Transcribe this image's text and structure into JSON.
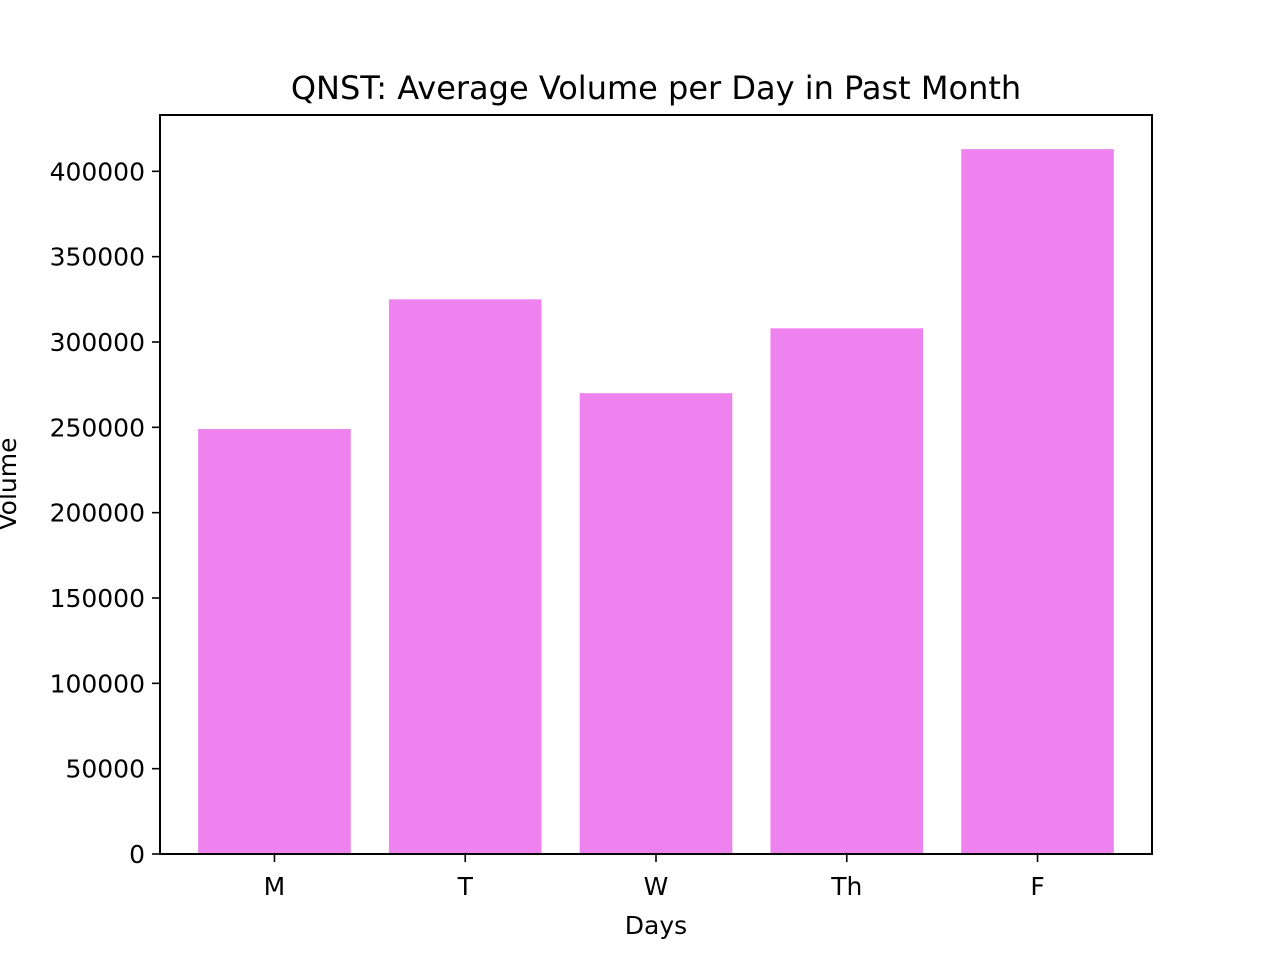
{
  "chart_data": {
    "type": "bar",
    "title": "QNST: Average Volume per Day in Past Month",
    "xlabel": "Days",
    "ylabel": "Volume",
    "categories": [
      "M",
      "T",
      "W",
      "Th",
      "F"
    ],
    "values": [
      249000,
      325000,
      270000,
      308000,
      413000
    ],
    "ylim": [
      0,
      433000
    ],
    "yticks": [
      0,
      50000,
      100000,
      150000,
      200000,
      250000,
      300000,
      350000,
      400000
    ],
    "grid": false,
    "legend": "none",
    "bar_color": "#ee82ee"
  }
}
